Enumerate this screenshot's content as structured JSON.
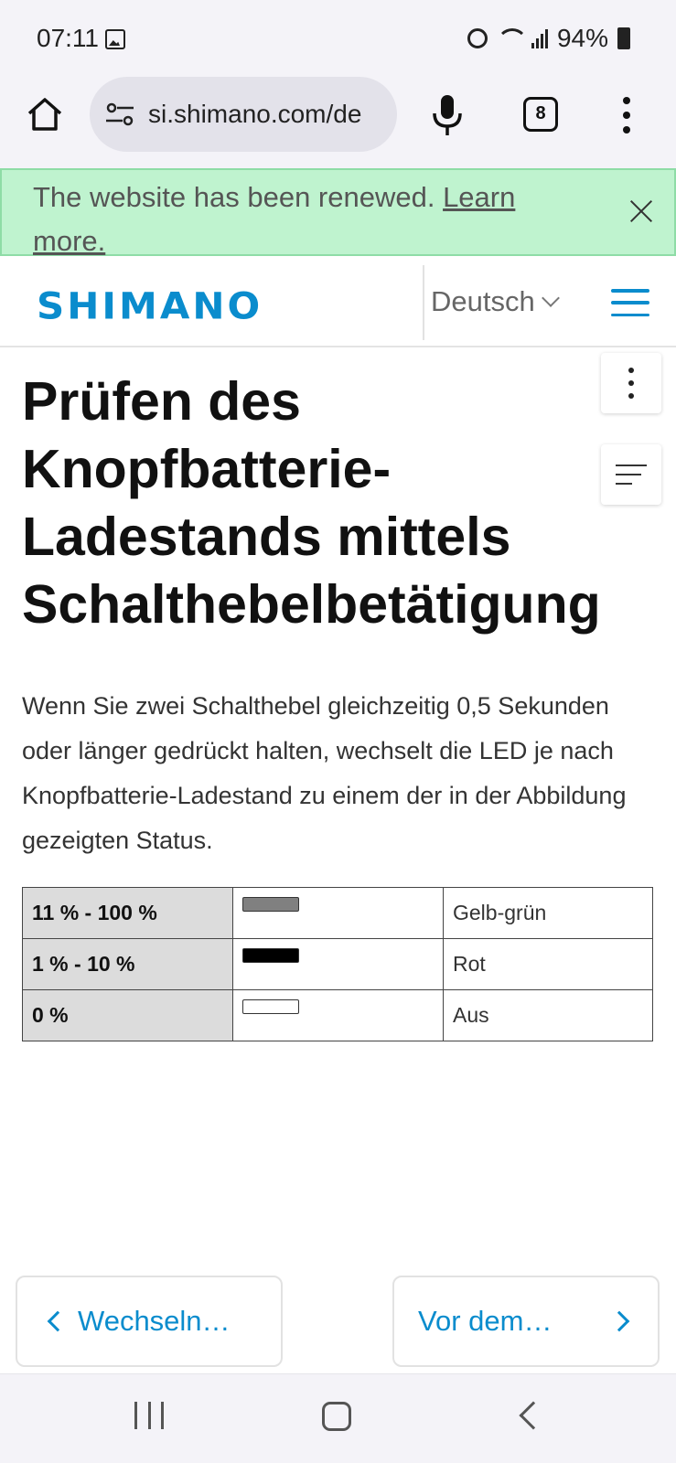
{
  "status_bar": {
    "time": "07:11",
    "battery": "94%"
  },
  "browser": {
    "url": "si.shimano.com/de",
    "tab_count": "8"
  },
  "banner": {
    "message": "The website has been renewed. ",
    "link": "Learn more."
  },
  "header": {
    "logo": "SHIMANO",
    "language": "Deutsch"
  },
  "page": {
    "title": "Prüfen des Knopfbatterie-Ladestands mittels Schalthebelbetätigung",
    "intro": "Wenn Sie zwei Schalthebel gleichzeitig 0,5 Sekunden oder länger gedrückt halten, wechselt die LED je nach Knopfbatterie-Ladestand zu einem der in der Abbildung gezeigten Status."
  },
  "status_table": {
    "rows": [
      {
        "level": "11 % - 100 %",
        "led_color": "#808080",
        "color_name": "Gelb-grün"
      },
      {
        "level": "1 % - 10 %",
        "led_color": "#000000",
        "color_name": "Rot"
      },
      {
        "level": "0 %",
        "led_color": "#ffffff",
        "color_name": "Aus"
      }
    ]
  },
  "navigation": {
    "prev_label": "Wechseln…",
    "next_label": "Vor dem…"
  },
  "colors": {
    "brand": "#0a8ccd",
    "banner_bg": "#bff3cf"
  }
}
